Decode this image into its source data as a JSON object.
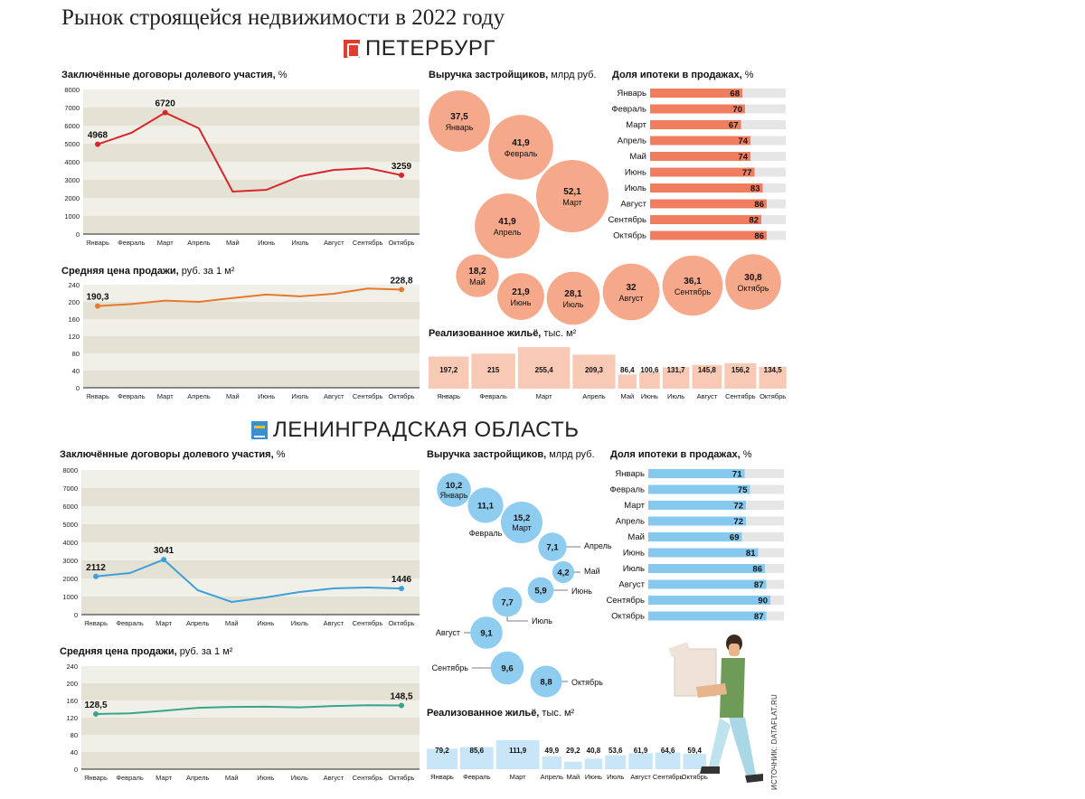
{
  "title": "Рынок строящейся недвижимости в 2022 году",
  "source": "ИСТОЧНИК: DATAFLAT.RU",
  "months": [
    "Январь",
    "Февраль",
    "Март",
    "Апрель",
    "Май",
    "Июнь",
    "Июль",
    "Август",
    "Сентябрь",
    "Октябрь"
  ],
  "colors": {
    "spb_line": "#d9262a",
    "spb_price": "#e57a2e",
    "spb_bubble": "#f5a88a",
    "spb_bar": "#f07d60",
    "spb_sold": "#f8c9b5",
    "lo_line": "#3ea0d8",
    "lo_price": "#3aa58a",
    "lo_bubble": "#8fcdf0",
    "lo_bar": "#86c9ef",
    "lo_sold": "#c8e6f7",
    "band_dark": "#e4e2d4",
    "band_light": "#f1f0e8",
    "track": "#e6e6e6"
  },
  "spb": {
    "region": "ПЕТЕРБУРГ",
    "contracts": {
      "title": "Заключённые договоры долевого участия,",
      "unit": " %",
      "yticks": [
        "0",
        "1000",
        "2000",
        "3000",
        "4000",
        "5000",
        "6000",
        "7000",
        "8000"
      ],
      "values": [
        4968,
        5600,
        6720,
        5850,
        2350,
        2450,
        3200,
        3550,
        3650,
        3259
      ],
      "labeled": [
        {
          "i": 0,
          "text": "4968"
        },
        {
          "i": 2,
          "text": "6720"
        },
        {
          "i": 9,
          "text": "3259"
        }
      ]
    },
    "price": {
      "title": "Средняя цена продажи,",
      "unit": " руб. за 1 м²",
      "yticks": [
        "0",
        "40",
        "80",
        "120",
        "160",
        "200",
        "240"
      ],
      "values": [
        190.3,
        195,
        203,
        200,
        209,
        217,
        213,
        219,
        231,
        228.8
      ],
      "labeled": [
        {
          "i": 0,
          "text": "190,3"
        },
        {
          "i": 9,
          "text": "228,8"
        }
      ]
    },
    "revenue": {
      "title": "Выручка застройщиков,",
      "unit": " млрд руб.",
      "items": [
        {
          "month": "Январь",
          "value": "37,5"
        },
        {
          "month": "Февраль",
          "value": "41,9"
        },
        {
          "month": "Март",
          "value": "52,1"
        },
        {
          "month": "Апрель",
          "value": "41,9"
        },
        {
          "month": "Май",
          "value": "18,2"
        },
        {
          "month": "Июнь",
          "value": "21,9"
        },
        {
          "month": "Июль",
          "value": "28,1"
        },
        {
          "month": "Август",
          "value": "32"
        },
        {
          "month": "Сентябрь",
          "value": "36,1"
        },
        {
          "month": "Октябрь",
          "value": "30,8"
        }
      ]
    },
    "mortgage": {
      "title": "Доля ипотеки в продажах,",
      "unit": " %",
      "values": [
        68,
        70,
        67,
        74,
        74,
        77,
        83,
        86,
        82,
        86
      ]
    },
    "sold": {
      "title": "Реализованное жильё,",
      "unit": " тыс. м²",
      "values": [
        "197,2",
        "215",
        "255,4",
        "209,3",
        "86,4",
        "100,6",
        "131,7",
        "145,8",
        "156,2",
        "134,5"
      ]
    }
  },
  "lo": {
    "region": "ЛЕНИНГРАДСКАЯ ОБЛАСТЬ",
    "contracts": {
      "title": "Заключённые договоры долевого участия,",
      "unit": " %",
      "yticks": [
        "0",
        "1000",
        "2000",
        "3000",
        "4000",
        "5000",
        "6000",
        "7000",
        "8000"
      ],
      "values": [
        2112,
        2300,
        3041,
        1350,
        700,
        950,
        1250,
        1450,
        1500,
        1446
      ],
      "labeled": [
        {
          "i": 0,
          "text": "2112"
        },
        {
          "i": 2,
          "text": "3041"
        },
        {
          "i": 9,
          "text": "1446"
        }
      ]
    },
    "price": {
      "title": "Средняя цена продажи,",
      "unit": " руб. за 1 м²",
      "yticks": [
        "0",
        "40",
        "80",
        "120",
        "160",
        "200",
        "240"
      ],
      "values": [
        128.5,
        130,
        136,
        143,
        145,
        145.5,
        144,
        147,
        149,
        148.5
      ],
      "labeled": [
        {
          "i": 0,
          "text": "128,5"
        },
        {
          "i": 9,
          "text": "148,5"
        }
      ]
    },
    "revenue": {
      "title": "Выручка застройщиков,",
      "unit": " млрд руб.",
      "items": [
        {
          "month": "Январь",
          "value": "10,2"
        },
        {
          "month": "Февраль",
          "value": "11,1"
        },
        {
          "month": "Март",
          "value": "15,2"
        },
        {
          "month": "Апрель",
          "value": "7,1"
        },
        {
          "month": "Май",
          "value": "4,2"
        },
        {
          "month": "Июнь",
          "value": "5,9"
        },
        {
          "month": "Июль",
          "value": "7,7"
        },
        {
          "month": "Август",
          "value": "9,1"
        },
        {
          "month": "Сентябрь",
          "value": "9,6"
        },
        {
          "month": "Октябрь",
          "value": "8,8"
        }
      ]
    },
    "mortgage": {
      "title": "Доля ипотеки в продажах,",
      "unit": " %",
      "values": [
        71,
        75,
        72,
        72,
        69,
        81,
        86,
        87,
        90,
        87
      ]
    },
    "sold": {
      "title": "Реализованное жильё,",
      "unit": " тыс. м²",
      "values": [
        "79,2",
        "85,6",
        "111,9",
        "49,9",
        "29,2",
        "40,8",
        "53,6",
        "61,9",
        "64,6",
        "59,4"
      ]
    }
  }
}
